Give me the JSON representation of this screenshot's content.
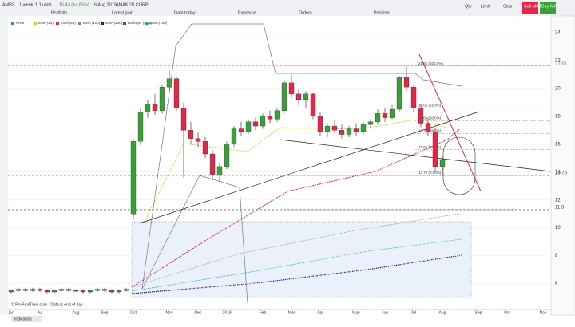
{
  "toolbar": {
    "symbol": "AMBS",
    "period": "1 week",
    "units": "1:1 units",
    "quote": "15.43 (+4.85%)",
    "date": "16 Aug 2019",
    "company": "AMAKEN CORP.",
    "menu": [
      "Portfolio",
      "Latest gain",
      "Gain today",
      "Exposure",
      "Orders",
      "Position"
    ],
    "order": {
      "qty": "Qty",
      "limit": "Limit",
      "stop": "Stop",
      "sell": "Sell MKT",
      "buy": "Buy MKT"
    }
  },
  "footer": {
    "note": "© ProRealTime.com - Data is end of day",
    "tab": "Indicators"
  },
  "chart_data": {
    "type": "candlestick",
    "legend": [
      "Price",
      "EMA (20)",
      "EMA (50)",
      "EMA (100)",
      "EMA (200)",
      "Bollinger (20,2)",
      "EMA (100)"
    ],
    "legend_colors": [
      "#3aa03a",
      "#d6d600",
      "#e0284a",
      "#888888",
      "#1a1a8c",
      "#555555",
      "#22b3a0"
    ],
    "categories": [
      "Jun",
      null,
      null,
      null,
      "Jul",
      null,
      null,
      null,
      null,
      "Aug",
      null,
      null,
      null,
      "Sep",
      null,
      null,
      null,
      "Oct",
      null,
      null,
      null,
      null,
      "Nov",
      null,
      null,
      null,
      "Dec",
      null,
      null,
      null,
      "2019",
      null,
      null,
      null,
      null,
      "Feb",
      null,
      null,
      null,
      "Mar",
      null,
      null,
      null,
      "Apr",
      null,
      null,
      null,
      null,
      "May",
      null,
      null,
      null,
      "Jun",
      null,
      null,
      null,
      "Jul",
      null,
      null,
      null,
      "Aug",
      null,
      null,
      null,
      null,
      "Sep",
      null,
      null,
      null,
      "Oct",
      null,
      null,
      null,
      null,
      "Nov"
    ],
    "open": [
      5.4,
      5.5,
      5.6,
      5.5,
      5.6,
      5.5,
      5.4,
      5.5,
      5.6,
      5.5,
      5.5,
      5.4,
      5.5,
      5.6,
      5.5,
      5.4,
      5.5,
      11.0,
      16.2,
      18.3,
      18.9,
      18.4,
      20.1,
      20.7,
      18.6,
      17.0,
      16.4,
      16.2,
      15.3,
      13.8,
      14.4,
      16.0,
      17.1,
      16.9,
      17.6,
      17.3,
      18.0,
      17.8,
      18.4,
      20.4,
      19.6,
      19.2,
      19.6,
      18.0,
      16.9,
      17.3,
      17.0,
      16.7,
      17.1,
      16.9,
      17.4,
      17.6,
      18.2,
      17.9,
      18.5,
      20.8,
      20.1,
      18.6,
      17.5,
      16.9,
      14.4,
      null,
      null,
      null,
      null,
      null,
      null,
      null,
      null,
      null,
      null,
      null,
      null,
      null,
      null
    ],
    "high": [
      5.6,
      5.7,
      5.7,
      5.7,
      5.7,
      5.6,
      5.6,
      5.7,
      5.7,
      5.6,
      5.6,
      5.6,
      5.7,
      5.7,
      5.6,
      5.6,
      5.7,
      16.4,
      18.6,
      19.2,
      19.6,
      20.3,
      21.3,
      20.8,
      19.0,
      17.6,
      16.9,
      16.5,
      15.6,
      14.6,
      16.2,
      17.3,
      17.6,
      17.8,
      17.9,
      18.2,
      18.4,
      18.6,
      20.6,
      21.0,
      20.0,
      19.8,
      19.7,
      18.3,
      17.5,
      17.7,
      17.4,
      17.3,
      17.5,
      17.6,
      17.8,
      18.5,
      18.6,
      18.8,
      20.9,
      21.6,
      20.3,
      18.9,
      17.9,
      17.2,
      15.1,
      null,
      null,
      null,
      null,
      null,
      null,
      null,
      null,
      null,
      null,
      null,
      null,
      null,
      null
    ],
    "low": [
      5.3,
      5.4,
      5.4,
      5.4,
      5.4,
      5.3,
      5.3,
      5.4,
      5.4,
      5.4,
      5.3,
      5.3,
      5.4,
      5.4,
      5.3,
      5.3,
      5.4,
      10.6,
      15.9,
      17.9,
      18.1,
      18.2,
      19.8,
      18.4,
      13.6,
      16.0,
      15.8,
      15.0,
      13.4,
      13.3,
      14.2,
      15.8,
      16.6,
      16.7,
      17.0,
      17.1,
      17.5,
      17.6,
      18.2,
      19.3,
      18.8,
      18.6,
      17.8,
      16.6,
      16.5,
      16.8,
      16.4,
      16.5,
      16.6,
      16.7,
      17.1,
      17.4,
      17.6,
      17.8,
      18.3,
      19.8,
      18.3,
      17.2,
      16.6,
      14.1,
      13.8,
      null,
      null,
      null,
      null,
      null,
      null,
      null,
      null,
      null,
      null,
      null,
      null,
      null,
      null
    ],
    "close": [
      5.5,
      5.6,
      5.5,
      5.6,
      5.5,
      5.4,
      5.5,
      5.6,
      5.5,
      5.5,
      5.4,
      5.5,
      5.6,
      5.5,
      5.4,
      5.5,
      5.6,
      16.2,
      18.3,
      18.9,
      18.4,
      20.1,
      20.7,
      18.6,
      17.0,
      16.4,
      16.2,
      15.3,
      13.8,
      14.4,
      16.0,
      17.1,
      16.9,
      17.6,
      17.3,
      18.0,
      17.8,
      18.4,
      20.4,
      19.6,
      19.2,
      19.6,
      18.0,
      16.9,
      17.3,
      17.0,
      16.7,
      17.1,
      16.9,
      17.4,
      17.6,
      18.2,
      17.9,
      18.5,
      20.8,
      20.1,
      18.6,
      17.5,
      16.9,
      14.4,
      14.9,
      null,
      null,
      null,
      null,
      null,
      null,
      null,
      null,
      null,
      null,
      null,
      null,
      null,
      null
    ],
    "up_color": "#3aa03a",
    "down_color": "#e0284a",
    "ylim": [
      4.6,
      25.2
    ],
    "yticks": [
      6,
      8,
      10,
      12,
      14,
      16,
      18,
      20,
      22,
      24
    ],
    "levels": [
      21.61,
      13.76,
      11.3
    ],
    "level_colors": [
      "#e06060",
      "#333333",
      "#333333"
    ],
    "fibonacci": [
      {
        "value": 21.61,
        "label": "21.61 (100.0%)"
      },
      {
        "value": 18.61,
        "label": "18.61 (61.8%)"
      },
      {
        "value": 17.69,
        "label": "17.69 (50.0%)"
      },
      {
        "value": 16.76,
        "label": "16.76 (38.2%)"
      },
      {
        "value": 15.61,
        "label": "15.61 (23.6%)"
      },
      {
        "value": 13.76,
        "label": "13.76 (0.00%)"
      }
    ],
    "grid": true
  }
}
